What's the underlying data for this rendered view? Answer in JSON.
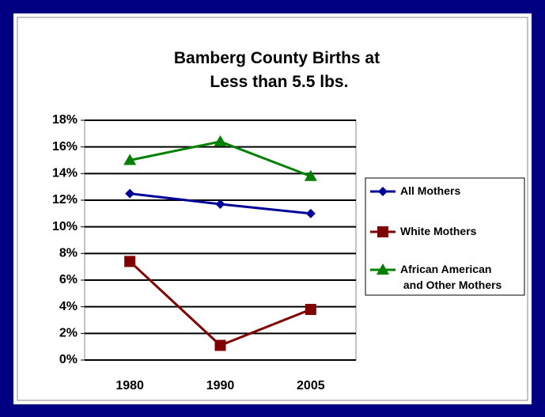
{
  "chart_data": {
    "type": "line",
    "title": "Bamberg County Births at Less than 5.5 lbs.",
    "categories": [
      "1980",
      "1990",
      "2005"
    ],
    "series": [
      {
        "name": "All Mothers",
        "color": "#000099",
        "marker": "diamond",
        "values": [
          12.5,
          11.7,
          11.0
        ]
      },
      {
        "name": "White Mothers",
        "color": "#800000",
        "marker": "square",
        "values": [
          7.4,
          1.1,
          3.8
        ]
      },
      {
        "name": "African American and Other Mothers",
        "color": "#008000",
        "marker": "triangle",
        "values": [
          15.0,
          16.4,
          13.8
        ]
      }
    ],
    "ylim": [
      0,
      18
    ],
    "yticks": [
      {
        "value": 0,
        "label": "0%"
      },
      {
        "value": 2,
        "label": "2%"
      },
      {
        "value": 4,
        "label": "4%"
      },
      {
        "value": 6,
        "label": "6%"
      },
      {
        "value": 8,
        "label": "8%"
      },
      {
        "value": 10,
        "label": "10%"
      },
      {
        "value": 12,
        "label": "12%"
      },
      {
        "value": 14,
        "label": "14%"
      },
      {
        "value": 16,
        "label": "16%"
      },
      {
        "value": 18,
        "label": "18%"
      }
    ],
    "grid": true,
    "legend": "right"
  }
}
